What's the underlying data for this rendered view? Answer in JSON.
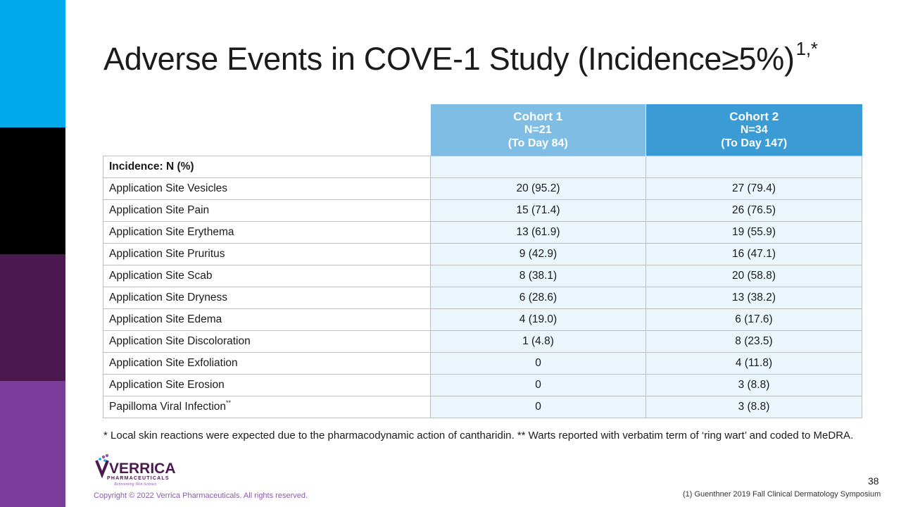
{
  "title": {
    "text": "Adverse Events in COVE-1 Study (Incidence≥5%)",
    "superscript": "1,*"
  },
  "table": {
    "headers": [
      {
        "title": "Cohort 1",
        "n": "N=21",
        "period": "(To Day 84)"
      },
      {
        "title": "Cohort 2",
        "n": "N=34",
        "period": "(To Day 147)"
      }
    ],
    "section_label": "Incidence: N (%)",
    "rows": [
      {
        "label": "Application Site Vesicles",
        "sup": "",
        "cohort1": "20 (95.2)",
        "cohort2": "27 (79.4)"
      },
      {
        "label": "Application Site Pain",
        "sup": "",
        "cohort1": "15 (71.4)",
        "cohort2": "26 (76.5)"
      },
      {
        "label": "Application Site Erythema",
        "sup": "",
        "cohort1": "13 (61.9)",
        "cohort2": "19 (55.9)"
      },
      {
        "label": "Application Site Pruritus",
        "sup": "",
        "cohort1": "9 (42.9)",
        "cohort2": "16 (47.1)"
      },
      {
        "label": "Application Site Scab",
        "sup": "",
        "cohort1": "8 (38.1)",
        "cohort2": "20 (58.8)"
      },
      {
        "label": "Application Site Dryness",
        "sup": "",
        "cohort1": "6 (28.6)",
        "cohort2": "13 (38.2)"
      },
      {
        "label": "Application Site Edema",
        "sup": "",
        "cohort1": "4 (19.0)",
        "cohort2": "6 (17.6)"
      },
      {
        "label": "Application Site Discoloration",
        "sup": "",
        "cohort1": "1 (4.8)",
        "cohort2": "8 (23.5)"
      },
      {
        "label": "Application Site Exfoliation",
        "sup": "",
        "cohort1": "0",
        "cohort2": "4 (11.8)"
      },
      {
        "label": "Application Site Erosion",
        "sup": "",
        "cohort1": "0",
        "cohort2": "3 (8.8)"
      },
      {
        "label": "Papilloma Viral Infection",
        "sup": "**",
        "cohort1": "0",
        "cohort2": "3 (8.8)"
      }
    ]
  },
  "footnote": "* Local skin reactions were expected due to the pharmacodynamic action of cantharidin. ** Warts reported with verbatim term of ‘ring wart’ and coded to MeDRA.",
  "logo": {
    "name": "VERRICA",
    "sub": "PHARMACEUTICALS",
    "tagline": "Reinventing Skin Science"
  },
  "copyright": "Copyright © 2022 Verrica Pharmaceuticals. All rights reserved.",
  "page_number": "38",
  "reference": "(1) Guenthner 2019 Fall Clinical Dermatology Symposium",
  "colors": {
    "bar_cyan": "#00a9ec",
    "bar_black": "#000000",
    "bar_plum": "#4a1a4f",
    "bar_purple": "#7b3c9b",
    "header_cohort1": "#7fbde5",
    "header_cohort2": "#3a9bd5",
    "value_cell": "#eaf5fc"
  }
}
